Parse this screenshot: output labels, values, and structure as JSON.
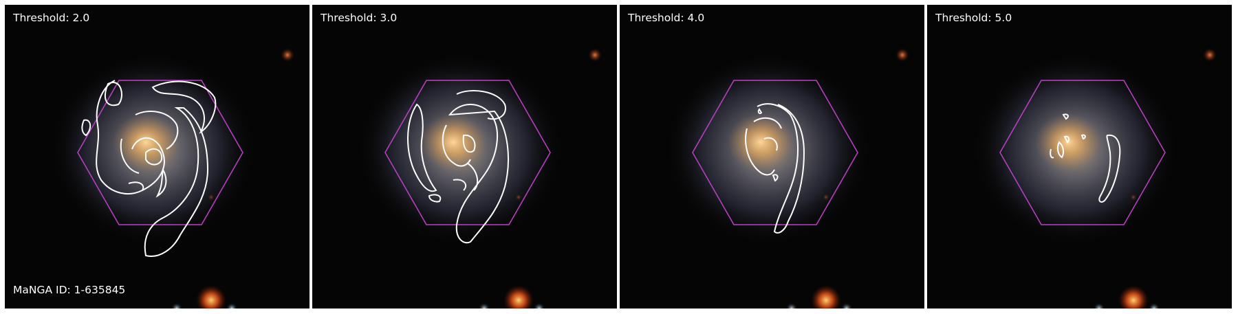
{
  "figure": {
    "manga_id_label": "MaNGA ID: 1-635845",
    "hexagon_color": "#c040c8",
    "contour_color": "#ffffff",
    "panels": [
      {
        "label": "Threshold: 2.0",
        "threshold": 2.0
      },
      {
        "label": "Threshold: 3.0",
        "threshold": 3.0
      },
      {
        "label": "Threshold: 4.0",
        "threshold": 4.0
      },
      {
        "label": "Threshold: 5.0",
        "threshold": 5.0
      }
    ]
  }
}
